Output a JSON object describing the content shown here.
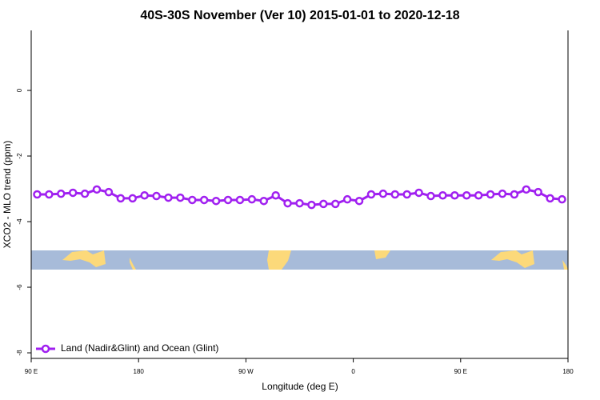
{
  "chart_data": {
    "type": "line",
    "title": "40S-30S November (Ver 10)   2015-01-01 to 2020-12-18",
    "x_label": "Longitude (deg E)",
    "y_label": "XCO2 - MLO trend (ppm)",
    "x": [
      95,
      105,
      115,
      125,
      135,
      145,
      155,
      165,
      175,
      185,
      195,
      205,
      215,
      225,
      235,
      245,
      255,
      265,
      275,
      285,
      295,
      305,
      315,
      325,
      335,
      345,
      355,
      365,
      375,
      385,
      395,
      405,
      415,
      425,
      435,
      445,
      455,
      465,
      475,
      485,
      495,
      505,
      515,
      525,
      535
    ],
    "series": [
      {
        "name": "Land (Nadir&Glint) and Ocean (Glint)",
        "color": "#a020f0",
        "values": [
          -3.17,
          -3.17,
          -3.15,
          -3.12,
          -3.15,
          -3.02,
          -3.1,
          -3.29,
          -3.29,
          -3.2,
          -3.22,
          -3.27,
          -3.27,
          -3.34,
          -3.34,
          -3.37,
          -3.34,
          -3.34,
          -3.32,
          -3.37,
          -3.2,
          -3.44,
          -3.44,
          -3.49,
          -3.46,
          -3.46,
          -3.32,
          -3.37,
          -3.17,
          -3.15,
          -3.17,
          -3.17,
          -3.12,
          -3.22,
          -3.2,
          -3.2,
          -3.2,
          -3.2,
          -3.17,
          -3.15,
          -3.17,
          -3.02,
          -3.1,
          -3.29,
          -3.32
        ]
      }
    ],
    "xlim": [
      90,
      540
    ],
    "xticks": [
      {
        "value": 90,
        "label": "90 E"
      },
      180,
      {
        "value": 270,
        "label": "90 W"
      },
      {
        "value": 360,
        "label": "0"
      },
      {
        "value": 450,
        "label": "90 E"
      },
      {
        "value": 540,
        "label": "180"
      }
    ],
    "ylim": [
      -8.17,
      1.83
    ],
    "yticks": [
      0,
      -2,
      -4,
      -6,
      -8
    ],
    "legend": "bottom-left"
  }
}
